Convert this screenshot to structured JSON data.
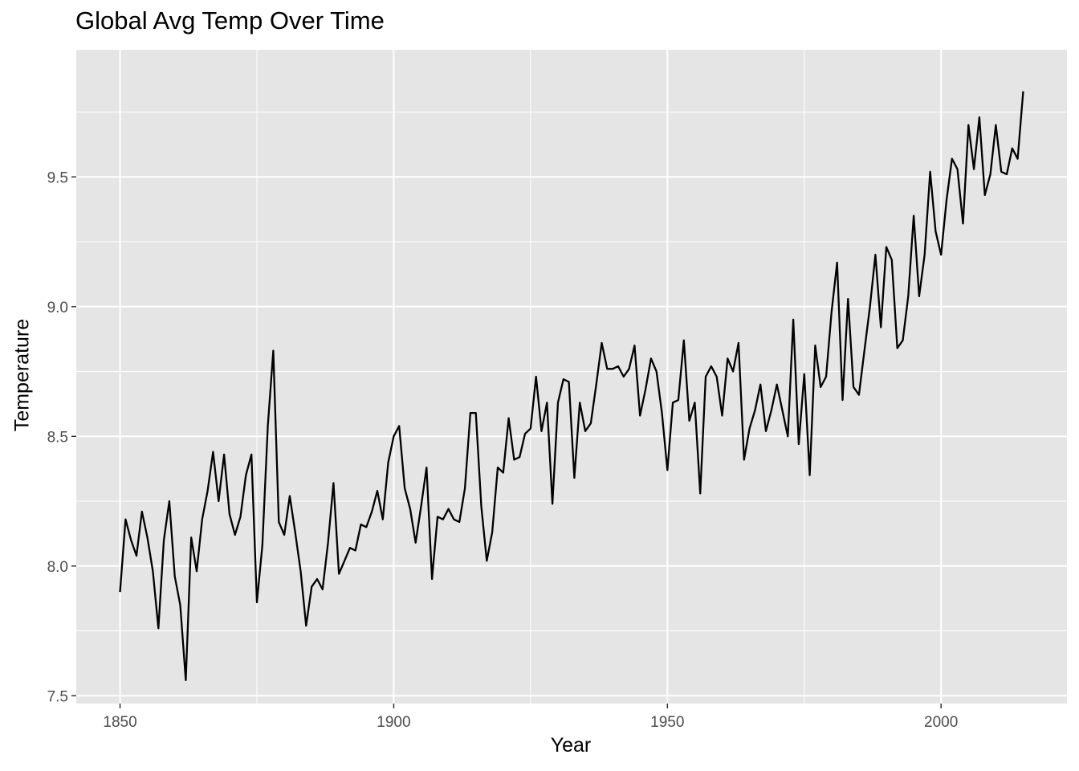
{
  "chart_data": {
    "type": "line",
    "title": "Global Avg Temp Over Time",
    "xlabel": "Year",
    "ylabel": "Temperature",
    "xlim": [
      1842,
      2023
    ],
    "ylim": [
      7.47,
      9.99
    ],
    "x_ticks": [
      1850,
      1900,
      1950,
      2000
    ],
    "x_tick_labels": [
      "1850",
      "1900",
      "1950",
      "2000"
    ],
    "y_ticks": [
      7.5,
      8.0,
      8.5,
      9.0,
      9.5
    ],
    "y_tick_labels": [
      "7.5",
      "8.0",
      "8.5",
      "9.0",
      "9.5"
    ],
    "grid": true,
    "legend": "none",
    "colors": {
      "panel": "#e5e5e5",
      "grid": "#ffffff",
      "line": "#000000"
    },
    "x": [
      1850,
      1851,
      1852,
      1853,
      1854,
      1855,
      1856,
      1857,
      1858,
      1859,
      1860,
      1861,
      1862,
      1863,
      1864,
      1865,
      1866,
      1867,
      1868,
      1869,
      1870,
      1871,
      1872,
      1873,
      1874,
      1875,
      1876,
      1877,
      1878,
      1879,
      1880,
      1881,
      1882,
      1883,
      1884,
      1885,
      1886,
      1887,
      1888,
      1889,
      1890,
      1891,
      1892,
      1893,
      1894,
      1895,
      1896,
      1897,
      1898,
      1899,
      1900,
      1901,
      1902,
      1903,
      1904,
      1905,
      1906,
      1907,
      1908,
      1909,
      1910,
      1911,
      1912,
      1913,
      1914,
      1915,
      1916,
      1917,
      1918,
      1919,
      1920,
      1921,
      1922,
      1923,
      1924,
      1925,
      1926,
      1927,
      1928,
      1929,
      1930,
      1931,
      1932,
      1933,
      1934,
      1935,
      1936,
      1937,
      1938,
      1939,
      1940,
      1941,
      1942,
      1943,
      1944,
      1945,
      1946,
      1947,
      1948,
      1949,
      1950,
      1951,
      1952,
      1953,
      1954,
      1955,
      1956,
      1957,
      1958,
      1959,
      1960,
      1961,
      1962,
      1963,
      1964,
      1965,
      1966,
      1967,
      1968,
      1969,
      1970,
      1971,
      1972,
      1973,
      1974,
      1975,
      1976,
      1977,
      1978,
      1979,
      1980,
      1981,
      1982,
      1983,
      1984,
      1985,
      1986,
      1987,
      1988,
      1989,
      1990,
      1991,
      1992,
      1993,
      1994,
      1995,
      1996,
      1997,
      1998,
      1999,
      2000,
      2001,
      2002,
      2003,
      2004,
      2005,
      2006,
      2007,
      2008,
      2009,
      2010,
      2011,
      2012,
      2013,
      2014,
      2015
    ],
    "values": [
      7.9,
      8.18,
      8.1,
      8.04,
      8.21,
      8.11,
      7.98,
      7.76,
      8.1,
      8.25,
      7.96,
      7.85,
      7.56,
      8.11,
      7.98,
      8.18,
      8.29,
      8.44,
      8.25,
      8.43,
      8.2,
      8.12,
      8.19,
      8.35,
      8.43,
      7.86,
      8.08,
      8.54,
      8.83,
      8.17,
      8.12,
      8.27,
      8.13,
      7.98,
      7.77,
      7.92,
      7.95,
      7.91,
      8.09,
      8.32,
      7.97,
      8.02,
      8.07,
      8.06,
      8.16,
      8.15,
      8.21,
      8.29,
      8.18,
      8.4,
      8.5,
      8.54,
      8.3,
      8.22,
      8.09,
      8.23,
      8.38,
      7.95,
      8.19,
      8.18,
      8.22,
      8.18,
      8.17,
      8.3,
      8.59,
      8.59,
      8.23,
      8.02,
      8.13,
      8.38,
      8.36,
      8.57,
      8.41,
      8.42,
      8.51,
      8.53,
      8.73,
      8.52,
      8.63,
      8.24,
      8.63,
      8.72,
      8.71,
      8.34,
      8.63,
      8.52,
      8.55,
      8.7,
      8.86,
      8.76,
      8.76,
      8.77,
      8.73,
      8.76,
      8.85,
      8.58,
      8.68,
      8.8,
      8.75,
      8.59,
      8.37,
      8.63,
      8.64,
      8.87,
      8.56,
      8.63,
      8.28,
      8.73,
      8.77,
      8.73,
      8.58,
      8.8,
      8.75,
      8.86,
      8.41,
      8.53,
      8.6,
      8.7,
      8.52,
      8.6,
      8.7,
      8.6,
      8.5,
      8.95,
      8.47,
      8.74,
      8.35,
      8.85,
      8.69,
      8.73,
      8.98,
      9.17,
      8.64,
      9.03,
      8.69,
      8.66,
      8.83,
      9.0,
      9.2,
      8.92,
      9.23,
      9.18,
      8.84,
      8.87,
      9.04,
      9.35,
      9.04,
      9.2,
      9.52,
      9.29,
      9.2,
      9.41,
      9.57,
      9.53,
      9.32,
      9.7,
      9.53,
      9.73,
      9.43,
      9.51,
      9.7,
      9.52,
      9.51,
      9.61,
      9.57,
      9.83
    ]
  }
}
